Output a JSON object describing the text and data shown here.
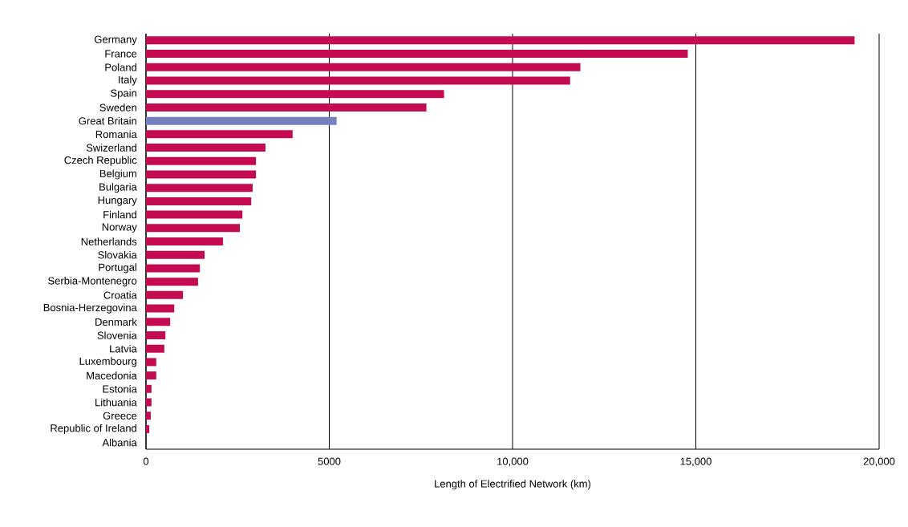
{
  "chart_data": {
    "type": "bar",
    "orientation": "horizontal",
    "xlabel": "Length of Electrified Network (km)",
    "categories": [
      "Germany",
      "France",
      "Poland",
      "Italy",
      "Spain",
      "Sweden",
      "Great Britain",
      "Romania",
      "Swizerland",
      "Czech Republic",
      "Belgium",
      "Bulgaria",
      "Hungary",
      "Finland",
      "Norway",
      "Netherlands",
      "Slovakia",
      "Portugal",
      "Serbia-Montenegro",
      "Croatia",
      "Bosnia-Herzegovina",
      "Denmark",
      "Slovenia",
      "Latvia",
      "Luxembourg",
      "Macedonia",
      "Estonia",
      "Lithuania",
      "Greece",
      "Republic of Ireland",
      "Albania"
    ],
    "values": [
      19330,
      14780,
      11850,
      11570,
      8130,
      7650,
      5200,
      4000,
      3260,
      3000,
      3000,
      2910,
      2870,
      2630,
      2560,
      2100,
      1600,
      1470,
      1420,
      1010,
      770,
      660,
      530,
      500,
      280,
      280,
      150,
      150,
      130,
      90,
      0
    ],
    "colors": [
      "#c40a50",
      "#c40a50",
      "#c40a50",
      "#c40a50",
      "#c40a50",
      "#c40a50",
      "#7580bf",
      "#c40a50",
      "#c40a50",
      "#c40a50",
      "#c40a50",
      "#c40a50",
      "#c40a50",
      "#c40a50",
      "#c40a50",
      "#c40a50",
      "#c40a50",
      "#c40a50",
      "#c40a50",
      "#c40a50",
      "#c40a50",
      "#c40a50",
      "#c40a50",
      "#c40a50",
      "#c40a50",
      "#c40a50",
      "#c40a50",
      "#c40a50",
      "#c40a50",
      "#c40a50",
      "#c40a50"
    ],
    "xlim": [
      0,
      20000
    ],
    "xticks": [
      0,
      5000,
      {
        "value": 10000,
        "label": "10,000"
      },
      {
        "value": 15000,
        "label": "15,000"
      },
      {
        "value": 20000,
        "label": "20,000"
      }
    ],
    "grid": "x"
  }
}
